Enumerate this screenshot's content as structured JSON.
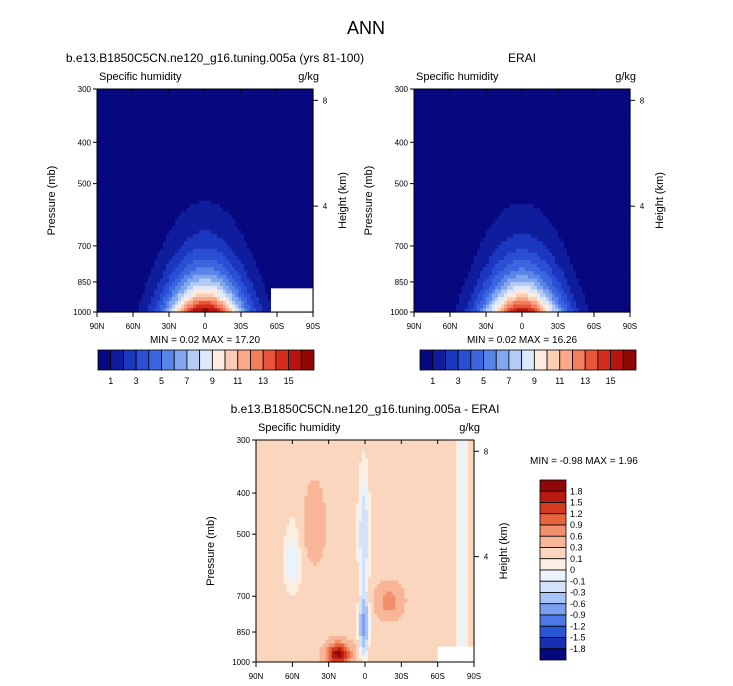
{
  "page": {
    "title": "ANN"
  },
  "chart_data": [
    {
      "type": "heatmap",
      "title": "b.e13.B1850C5CN.ne120_g16.tuning.005a (yrs 81-100)",
      "left_label": "Specific humidity",
      "right_label": "g/kg",
      "xlabel": "",
      "ylabel": "Pressure (mb)",
      "ylabel_right": "Height (km)",
      "x_ticks": [
        "90N",
        "60N",
        "30N",
        "0",
        "30S",
        "60S",
        "90S"
      ],
      "x_range": [
        90,
        -90
      ],
      "y_ticks": [
        300,
        400,
        500,
        700,
        850,
        1000
      ],
      "y_range": [
        300,
        1000
      ],
      "y_scale": "log",
      "height_ticks": [
        8,
        4
      ],
      "stats": "MIN =   0.02   MAX =  17.20",
      "contour_levels": [
        1,
        2,
        3,
        4,
        5,
        6,
        7,
        8,
        9,
        10,
        11,
        12,
        13,
        14,
        15,
        16
      ],
      "colorbar_labels": [
        "1",
        "3",
        "5",
        "7",
        "9",
        "11",
        "13",
        "15"
      ],
      "colorbar_orientation": "horizontal",
      "grid": false
    },
    {
      "type": "heatmap",
      "title": "ERAI",
      "left_label": "Specific humidity",
      "right_label": "g/kg",
      "xlabel": "",
      "ylabel": "Pressure (mb)",
      "ylabel_right": "Height (km)",
      "x_ticks": [
        "90N",
        "60N",
        "30N",
        "0",
        "30S",
        "60S",
        "90S"
      ],
      "x_range": [
        90,
        -90
      ],
      "y_ticks": [
        300,
        400,
        500,
        700,
        850,
        1000
      ],
      "y_range": [
        300,
        1000
      ],
      "y_scale": "log",
      "height_ticks": [
        8,
        4
      ],
      "stats": "MIN =   0.02   MAX =  16.26",
      "contour_levels": [
        1,
        2,
        3,
        4,
        5,
        6,
        7,
        8,
        9,
        10,
        11,
        12,
        13,
        14,
        15,
        16
      ],
      "colorbar_labels": [
        "1",
        "3",
        "5",
        "7",
        "9",
        "11",
        "13",
        "15"
      ],
      "colorbar_orientation": "horizontal",
      "grid": false
    },
    {
      "type": "heatmap",
      "title": "b.e13.B1850C5CN.ne120_g16.tuning.005a - ERAI",
      "left_label": "Specific humidity",
      "right_label": "g/kg",
      "xlabel": "",
      "ylabel": "Pressure (mb)",
      "ylabel_right": "Height (km)",
      "x_ticks": [
        "90N",
        "60N",
        "30N",
        "0",
        "30S",
        "60S",
        "90S"
      ],
      "x_range": [
        90,
        -90
      ],
      "y_ticks": [
        300,
        400,
        500,
        700,
        850,
        1000
      ],
      "y_range": [
        300,
        1000
      ],
      "y_scale": "log",
      "height_ticks": [
        8,
        4
      ],
      "stats": "MIN = -0.98   MAX =   1.96",
      "contour_levels": [
        -1.8,
        -1.5,
        -1.2,
        -0.9,
        -0.6,
        -0.3,
        -0.1,
        0,
        0.1,
        0.3,
        0.6,
        0.9,
        1.2,
        1.5,
        1.8
      ],
      "colorbar_labels": [
        "1.8",
        "1.5",
        "1.2",
        "0.9",
        "0.6",
        "0.3",
        "0.1",
        "0",
        "-0.1",
        "-0.3",
        "-0.6",
        "-0.9",
        "-1.2",
        "-1.5",
        "-1.8"
      ],
      "colorbar_orientation": "vertical",
      "grid": false
    }
  ],
  "colors": {
    "seq": [
      "#07077f",
      "#0f1d9d",
      "#1b37bf",
      "#2a4ed4",
      "#3b66e0",
      "#5a85e8",
      "#83a7ef",
      "#b3cbf5",
      "#dde9fb",
      "#fdebdf",
      "#fbcdb4",
      "#f9a98a",
      "#f47f5e",
      "#e9553a",
      "#d42d1d",
      "#b81410",
      "#8f0807"
    ],
    "diff": [
      "#07077f",
      "#1530b0",
      "#2855d6",
      "#4d79e6",
      "#7ca0ef",
      "#a8c3f5",
      "#d3e2fa",
      "#eaf2fc",
      "#fdeee2",
      "#fbd6bf",
      "#f8b597",
      "#f28f6d",
      "#e8643f",
      "#d5391f",
      "#b81a10",
      "#8f0807"
    ],
    "text": "#000000",
    "missing": "#ffffff"
  }
}
